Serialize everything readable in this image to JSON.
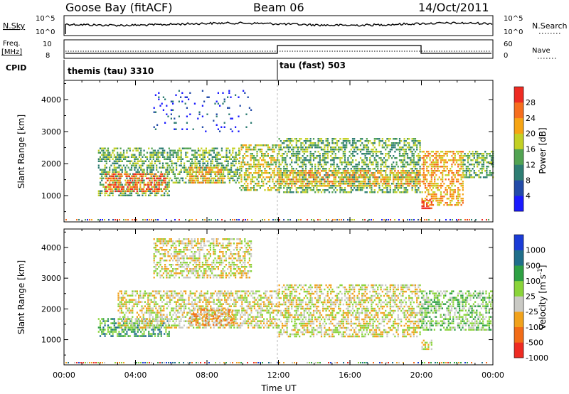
{
  "header": {
    "station": "Goose Bay (fitACF)",
    "beam": "Beam 06",
    "date": "14/Oct/2011"
  },
  "param_panels": {
    "nsky": {
      "label": "N.Sky",
      "ticks": [
        "10^5",
        "10^0"
      ]
    },
    "nsearch": {
      "label": "N.Search",
      "ticks": [
        "10^5",
        "10^0"
      ]
    },
    "freq": {
      "label_line1": "Freq.",
      "label_line2": "[MHz]",
      "ticks": [
        "10",
        "8"
      ]
    },
    "nave": {
      "label": "Nave",
      "ticks": [
        "60",
        "0"
      ]
    },
    "cpid": {
      "label": "CPID",
      "programs": [
        {
          "name": "themis (tau) 3310",
          "start_hr": 0.0,
          "end_hr": 12.0
        },
        {
          "name": "tau (fast) 503",
          "start_hr": 12.0,
          "end_hr": 24.0
        }
      ]
    }
  },
  "chart_data": [
    {
      "type": "heatmap",
      "title": "",
      "xlabel": "Time UT",
      "ylabel": "Slant Range [km]",
      "xlim_hours": [
        0,
        24
      ],
      "x_tick_labels": [
        "00:00",
        "04:00",
        "08:00",
        "12:00",
        "16:00",
        "20:00",
        "00:00"
      ],
      "ylim": [
        180,
        4600
      ],
      "y_ticks": [
        1000,
        2000,
        3000,
        4000
      ],
      "colorbar": {
        "label": "Power [dB]",
        "ticks": [
          "4",
          "8",
          "12",
          "16",
          "20",
          "24",
          "28"
        ],
        "colors": [
          "#1a1aff",
          "#234ba8",
          "#2e7d73",
          "#52a352",
          "#c3d024",
          "#f6a414",
          "#f66e1e",
          "#ee2b22"
        ]
      },
      "echo_regions": [
        {
          "t_start": 1.9,
          "t_end": 5.9,
          "range_start": 1000,
          "range_end": 2500,
          "mean_level": 3,
          "note": "blue-green band"
        },
        {
          "t_start": 2.3,
          "t_end": 5.7,
          "range_start": 1150,
          "range_end": 1700,
          "mean_level": 6,
          "note": "orange core"
        },
        {
          "t_start": 5.9,
          "t_end": 9.8,
          "range_start": 1400,
          "range_end": 2500,
          "mean_level": 3
        },
        {
          "t_start": 7.0,
          "t_end": 9.0,
          "range_start": 1400,
          "range_end": 1900,
          "mean_level": 5
        },
        {
          "t_start": 9.8,
          "t_end": 12.0,
          "range_start": 1200,
          "range_end": 2600,
          "mean_level": 4
        },
        {
          "t_start": 12.0,
          "t_end": 19.9,
          "range_start": 1100,
          "range_end": 2800,
          "mean_level": 3
        },
        {
          "t_start": 12.0,
          "t_end": 19.9,
          "range_start": 1300,
          "range_end": 1800,
          "mean_level": 5
        },
        {
          "t_start": 20.0,
          "t_end": 22.3,
          "range_start": 700,
          "range_end": 2400,
          "mean_level": 5
        },
        {
          "t_start": 20.0,
          "t_end": 20.6,
          "range_start": 600,
          "range_end": 900,
          "mean_level": 7
        },
        {
          "t_start": 22.3,
          "t_end": 24.0,
          "range_start": 1600,
          "range_end": 2400,
          "mean_level": 3
        },
        {
          "t_start": 5.0,
          "t_end": 10.5,
          "range_start": 3000,
          "range_end": 4300,
          "mean_level": 1
        }
      ]
    },
    {
      "type": "heatmap",
      "title": "",
      "xlabel": "Time UT",
      "ylabel": "Slant Range [km]",
      "xlim_hours": [
        0,
        24
      ],
      "x_tick_labels": [
        "00:00",
        "04:00",
        "08:00",
        "12:00",
        "16:00",
        "20:00",
        "00:00"
      ],
      "ylim": [
        180,
        4600
      ],
      "y_ticks": [
        1000,
        2000,
        3000,
        4000
      ],
      "colorbar": {
        "label": "Velocity [m s-1]",
        "ticks": [
          "1000",
          "500",
          "100",
          "25",
          "-25",
          "-100",
          "-500",
          "-1000"
        ],
        "colors": [
          "#1a3bd6",
          "#1f6e8a",
          "#2ea043",
          "#8ad43a",
          "#c9c9c4",
          "#f1a21c",
          "#f26c17",
          "#ee2b22"
        ]
      },
      "echo_regions": [
        {
          "t_start": 1.9,
          "t_end": 5.9,
          "range_start": 1100,
          "range_end": 1700,
          "mean_level": 2,
          "note": "green echoes"
        },
        {
          "t_start": 3.0,
          "t_end": 12.0,
          "range_start": 1400,
          "range_end": 2600,
          "mean_level": 4,
          "note": "grey ground scatter"
        },
        {
          "t_start": 7.0,
          "t_end": 9.5,
          "range_start": 1500,
          "range_end": 2000,
          "mean_level": 5
        },
        {
          "t_start": 12.0,
          "t_end": 19.9,
          "range_start": 1100,
          "range_end": 2800,
          "mean_level": 4
        },
        {
          "t_start": 19.9,
          "t_end": 24.0,
          "range_start": 1300,
          "range_end": 2600,
          "mean_level": 3
        },
        {
          "t_start": 20.0,
          "t_end": 20.6,
          "range_start": 700,
          "range_end": 1000,
          "mean_level": 4
        },
        {
          "t_start": 5.0,
          "t_end": 10.5,
          "range_start": 3000,
          "range_end": 4300,
          "mean_level": 4
        }
      ]
    }
  ]
}
